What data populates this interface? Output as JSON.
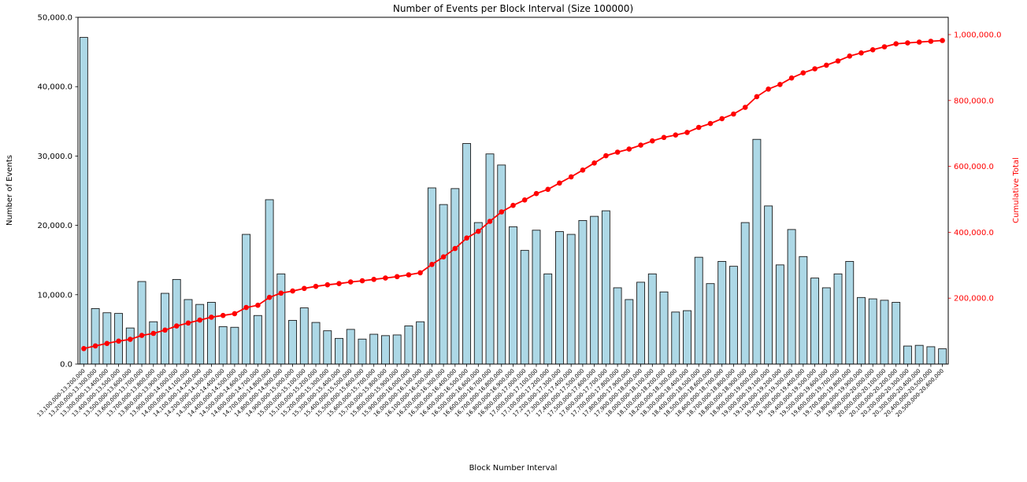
{
  "figure": {
    "title": "Number of Events per Block Interval (Size 100000)",
    "x_axis": {
      "label": "Block Number Interval"
    },
    "y_axis_left": {
      "label": "Number of Events"
    },
    "y_axis_right": {
      "label": "Cumulative Total"
    }
  },
  "colors": {
    "bar_fill": "#add8e6",
    "bar_edge": "#1a1a1a",
    "line": "#ff0000",
    "right_axis": "#ff0000",
    "axis": "#000000"
  },
  "chart_data": {
    "type": "bar",
    "title": "Number of Events per Block Interval (Size 100000)",
    "xlabel": "Block Number Interval",
    "ylabel": "Number of Events",
    "ylabel_right": "Cumulative Total",
    "grid": false,
    "ylim_left": [
      0,
      50000
    ],
    "ylim_right": [
      0,
      1000000
    ],
    "left_ticks": [
      {
        "value": 0,
        "label": "0.0"
      },
      {
        "value": 10000,
        "label": "10,000.0"
      },
      {
        "value": 20000,
        "label": "20,000.0"
      },
      {
        "value": 30000,
        "label": "30,000.0"
      },
      {
        "value": 40000,
        "label": "40,000.0"
      },
      {
        "value": 50000,
        "label": "50,000.0"
      }
    ],
    "right_ticks": [
      {
        "value": 200000,
        "label": "200,000.0"
      },
      {
        "value": 400000,
        "label": "400,000.0"
      },
      {
        "value": 600000,
        "label": "600,000.0"
      },
      {
        "value": 800000,
        "label": "800,000.0"
      },
      {
        "value": 1000000,
        "label": "1,000,000.0"
      }
    ],
    "categories": [
      "13,100,000-13,200,000",
      "13,200,000-13,300,000",
      "13,300,000-13,400,000",
      "13,400,000-13,500,000",
      "13,500,000-13,600,000",
      "13,600,000-13,700,000",
      "13,700,000-13,800,000",
      "13,800,000-13,900,000",
      "13,900,000-14,000,000",
      "14,000,000-14,100,000",
      "14,100,000-14,200,000",
      "14,200,000-14,300,000",
      "14,300,000-14,400,000",
      "14,400,000-14,500,000",
      "14,500,000-14,600,000",
      "14,600,000-14,700,000",
      "14,700,000-14,800,000",
      "14,800,000-14,900,000",
      "14,900,000-15,000,000",
      "15,000,000-15,100,000",
      "15,100,000-15,200,000",
      "15,200,000-15,300,000",
      "15,300,000-15,400,000",
      "15,400,000-15,500,000",
      "15,500,000-15,600,000",
      "15,600,000-15,700,000",
      "15,700,000-15,800,000",
      "15,800,000-15,900,000",
      "15,900,000-16,000,000",
      "16,000,000-16,100,000",
      "16,100,000-16,200,000",
      "16,200,000-16,300,000",
      "16,300,000-16,400,000",
      "16,400,000-16,500,000",
      "16,500,000-16,600,000",
      "16,600,000-16,700,000",
      "16,700,000-16,800,000",
      "16,800,000-16,900,000",
      "16,900,000-17,000,000",
      "17,000,000-17,100,000",
      "17,100,000-17,200,000",
      "17,200,000-17,300,000",
      "17,300,000-17,400,000",
      "17,400,000-17,500,000",
      "17,500,000-17,600,000",
      "17,600,000-17,700,000",
      "17,700,000-17,800,000",
      "17,800,000-17,900,000",
      "17,900,000-18,000,000",
      "18,000,000-18,100,000",
      "18,100,000-18,200,000",
      "18,200,000-18,300,000",
      "18,300,000-18,400,000",
      "18,400,000-18,500,000",
      "18,500,000-18,600,000",
      "18,600,000-18,700,000",
      "18,700,000-18,800,000",
      "18,800,000-18,900,000",
      "18,900,000-19,000,000",
      "19,000,000-19,100,000",
      "19,100,000-19,200,000",
      "19,200,000-19,300,000",
      "19,300,000-19,400,000",
      "19,400,000-19,500,000",
      "19,500,000-19,600,000",
      "19,600,000-19,700,000",
      "19,700,000-19,800,000",
      "19,800,000-19,900,000",
      "19,900,000-20,000,000",
      "20,000,000-20,100,000",
      "20,100,000-20,200,000",
      "20,200,000-20,300,000",
      "20,300,000-20,400,000",
      "20,400,000-20,500,000",
      "20,500,000-20,600,000"
    ],
    "series": [
      {
        "name": "Number of Events",
        "type": "bar",
        "axis": "left",
        "values": [
          47100,
          8000,
          7400,
          7300,
          5200,
          11900,
          6100,
          10200,
          12200,
          9300,
          8600,
          8900,
          5400,
          5300,
          18700,
          7000,
          23700,
          13000,
          6300,
          8100,
          6000,
          4800,
          3700,
          5000,
          3600,
          4300,
          4100,
          4200,
          5500,
          6100,
          25400,
          23000,
          25300,
          31800,
          20400,
          30300,
          28700,
          19800,
          16400,
          19300,
          13000,
          19100,
          18700,
          20700,
          21300,
          22100,
          11000,
          9300,
          11800,
          13000,
          10400,
          7500,
          7700,
          15400,
          11600,
          14800,
          14100,
          20400,
          32400,
          22800,
          14300,
          19400,
          15500,
          12400,
          11000,
          13000,
          14800,
          9600,
          9400,
          9200,
          8900,
          2600,
          2700,
          2500,
          2200
        ]
      },
      {
        "name": "Cumulative Total",
        "type": "line",
        "axis": "right",
        "derivation": "running total of bar values",
        "marker": "circle"
      }
    ]
  }
}
